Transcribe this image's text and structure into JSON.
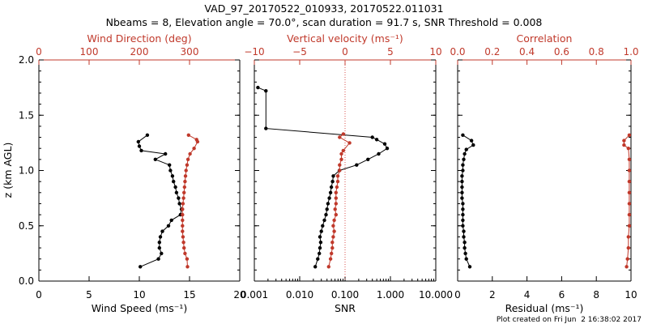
{
  "title_line1": "VAD_97_20170522_010933, 20170522.011031",
  "title_line2": "Nbeams = 8, Elevation angle = 70.0°, scan duration = 91.7 s, SNR Threshold = 0.008",
  "footer": "Plot created on Fri Jun  2 16:38:02 2017",
  "colors": {
    "black": "#000000",
    "red": "#c0392b",
    "refline": "#d9534f"
  },
  "ylabel": "z (km AGL)",
  "chart_data": [
    {
      "type": "line",
      "panel": "wind",
      "xlabel_bottom": "Wind Speed (ms⁻¹)",
      "xlabel_top": "Wind Direction (deg)",
      "xlim_bottom": [
        0,
        20
      ],
      "xlim_top": [
        0,
        400
      ],
      "ylim": [
        0,
        2
      ],
      "xticks_bottom": [
        "0",
        "5",
        "10",
        "15",
        "20"
      ],
      "xticks_top": [
        "0",
        "100",
        "200",
        "300"
      ],
      "yticks": [
        "0.0",
        "0.5",
        "1.0",
        "1.5",
        "2.0"
      ],
      "series": [
        {
          "color": "black",
          "axis": "bottom",
          "points": [
            [
              10.1,
              0.13
            ],
            [
              11.9,
              0.2
            ],
            [
              12.2,
              0.25
            ],
            [
              12.0,
              0.3
            ],
            [
              12.0,
              0.35
            ],
            [
              12.1,
              0.4
            ],
            [
              12.3,
              0.45
            ],
            [
              12.9,
              0.5
            ],
            [
              13.2,
              0.55
            ],
            [
              14.1,
              0.6
            ],
            [
              14.2,
              0.65
            ],
            [
              14.0,
              0.7
            ],
            [
              13.9,
              0.75
            ],
            [
              13.7,
              0.8
            ],
            [
              13.6,
              0.85
            ],
            [
              13.4,
              0.9
            ],
            [
              13.3,
              0.95
            ],
            [
              13.1,
              1.0
            ],
            [
              13.0,
              1.05
            ],
            [
              11.6,
              1.1
            ],
            [
              12.6,
              1.15
            ],
            [
              10.2,
              1.18
            ],
            [
              10.0,
              1.22
            ],
            [
              9.9,
              1.26
            ],
            [
              10.8,
              1.32
            ]
          ]
        },
        {
          "color": "red",
          "axis": "top",
          "points": [
            [
              296,
              0.13
            ],
            [
              295,
              0.2
            ],
            [
              291,
              0.25
            ],
            [
              289,
              0.3
            ],
            [
              288,
              0.35
            ],
            [
              287,
              0.4
            ],
            [
              286,
              0.45
            ],
            [
              286,
              0.5
            ],
            [
              286,
              0.55
            ],
            [
              286,
              0.6
            ],
            [
              286,
              0.65
            ],
            [
              287,
              0.7
            ],
            [
              288,
              0.75
            ],
            [
              289,
              0.8
            ],
            [
              290,
              0.85
            ],
            [
              291,
              0.9
            ],
            [
              292,
              0.95
            ],
            [
              293,
              1.0
            ],
            [
              295,
              1.05
            ],
            [
              297,
              1.1
            ],
            [
              301,
              1.15
            ],
            [
              309,
              1.2
            ],
            [
              316,
              1.26
            ],
            [
              314,
              1.28
            ],
            [
              298,
              1.32
            ]
          ]
        }
      ]
    },
    {
      "type": "line",
      "panel": "vertical",
      "xlabel_bottom": "SNR",
      "xlabel_top": "Vertical velocity (ms⁻¹)",
      "xscale_bottom": "log",
      "xlim_bottom": [
        0.001,
        10
      ],
      "xlim_top": [
        -10,
        10
      ],
      "ylim": [
        0,
        2
      ],
      "xticks_bottom": [
        "0.001",
        "0.010",
        "0.100",
        "1.000",
        "10.000"
      ],
      "xticks_top": [
        "−10",
        "−5",
        "0",
        "5",
        "10"
      ],
      "reference_line": 0,
      "series": [
        {
          "color": "black",
          "axis": "bottom",
          "points": [
            [
              0.022,
              0.13
            ],
            [
              0.025,
              0.2
            ],
            [
              0.027,
              0.25
            ],
            [
              0.028,
              0.3
            ],
            [
              0.029,
              0.35
            ],
            [
              0.028,
              0.4
            ],
            [
              0.03,
              0.45
            ],
            [
              0.032,
              0.5
            ],
            [
              0.035,
              0.55
            ],
            [
              0.038,
              0.6
            ],
            [
              0.04,
              0.65
            ],
            [
              0.042,
              0.7
            ],
            [
              0.045,
              0.75
            ],
            [
              0.048,
              0.8
            ],
            [
              0.05,
              0.85
            ],
            [
              0.053,
              0.9
            ],
            [
              0.055,
              0.95
            ],
            [
              0.075,
              1.0
            ],
            [
              0.18,
              1.05
            ],
            [
              0.32,
              1.1
            ],
            [
              0.55,
              1.15
            ],
            [
              0.85,
              1.2
            ],
            [
              0.75,
              1.24
            ],
            [
              0.5,
              1.28
            ],
            [
              0.4,
              1.3
            ],
            [
              0.0018,
              1.38
            ],
            [
              0.0018,
              1.72
            ],
            [
              0.0012,
              1.75
            ]
          ]
        },
        {
          "color": "red",
          "axis": "top",
          "points": [
            [
              -1.8,
              0.13
            ],
            [
              -1.6,
              0.2
            ],
            [
              -1.5,
              0.25
            ],
            [
              -1.4,
              0.3
            ],
            [
              -1.4,
              0.35
            ],
            [
              -1.3,
              0.4
            ],
            [
              -1.2,
              0.45
            ],
            [
              -1.3,
              0.5
            ],
            [
              -1.2,
              0.55
            ],
            [
              -1.0,
              0.6
            ],
            [
              -1.1,
              0.65
            ],
            [
              -1.0,
              0.7
            ],
            [
              -1.0,
              0.75
            ],
            [
              -1.0,
              0.8
            ],
            [
              -0.9,
              0.85
            ],
            [
              -0.8,
              0.9
            ],
            [
              -0.8,
              0.95
            ],
            [
              -0.6,
              1.0
            ],
            [
              -0.6,
              1.05
            ],
            [
              -0.4,
              1.1
            ],
            [
              -0.4,
              1.15
            ],
            [
              -0.2,
              1.18
            ],
            [
              0.5,
              1.25
            ],
            [
              -0.6,
              1.3
            ],
            [
              -0.2,
              1.33
            ]
          ]
        }
      ]
    },
    {
      "type": "line",
      "panel": "correlation",
      "xlabel_bottom": "Residual (ms⁻¹)",
      "xlabel_top": "Correlation",
      "xlim_bottom": [
        0,
        10
      ],
      "xlim_top": [
        0,
        1
      ],
      "ylim": [
        0,
        2
      ],
      "xticks_bottom": [
        "0",
        "2",
        "4",
        "6",
        "8",
        "10"
      ],
      "xticks_top": [
        "0.0",
        "0.2",
        "0.4",
        "0.6",
        "0.8",
        "1.0"
      ],
      "series": [
        {
          "color": "black",
          "axis": "bottom",
          "points": [
            [
              0.7,
              0.13
            ],
            [
              0.5,
              0.2
            ],
            [
              0.45,
              0.25
            ],
            [
              0.4,
              0.3
            ],
            [
              0.4,
              0.35
            ],
            [
              0.35,
              0.4
            ],
            [
              0.35,
              0.45
            ],
            [
              0.3,
              0.5
            ],
            [
              0.3,
              0.55
            ],
            [
              0.3,
              0.6
            ],
            [
              0.3,
              0.65
            ],
            [
              0.3,
              0.7
            ],
            [
              0.25,
              0.75
            ],
            [
              0.25,
              0.8
            ],
            [
              0.25,
              0.85
            ],
            [
              0.25,
              0.9
            ],
            [
              0.25,
              0.95
            ],
            [
              0.3,
              1.0
            ],
            [
              0.3,
              1.05
            ],
            [
              0.35,
              1.1
            ],
            [
              0.4,
              1.15
            ],
            [
              0.5,
              1.19
            ],
            [
              0.9,
              1.23
            ],
            [
              0.8,
              1.27
            ],
            [
              0.3,
              1.32
            ]
          ]
        },
        {
          "color": "red",
          "axis": "top",
          "points": [
            [
              0.975,
              0.13
            ],
            [
              0.98,
              0.2
            ],
            [
              0.985,
              0.3
            ],
            [
              0.985,
              0.4
            ],
            [
              0.99,
              0.5
            ],
            [
              0.99,
              0.6
            ],
            [
              0.99,
              0.7
            ],
            [
              0.99,
              0.8
            ],
            [
              0.99,
              0.9
            ],
            [
              0.99,
              1.0
            ],
            [
              0.99,
              1.1
            ],
            [
              0.985,
              1.2
            ],
            [
              0.96,
              1.23
            ],
            [
              0.96,
              1.27
            ],
            [
              0.99,
              1.32
            ]
          ]
        }
      ]
    }
  ]
}
